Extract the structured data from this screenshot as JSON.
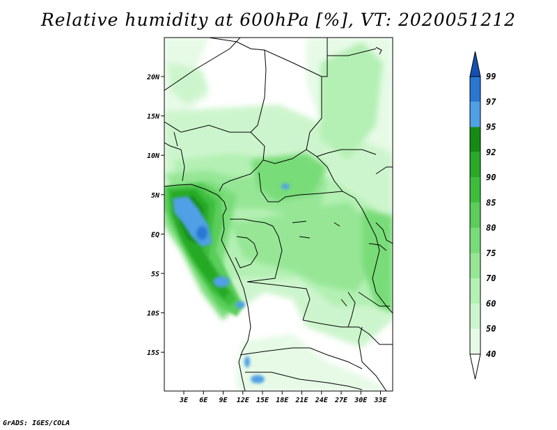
{
  "title": "Relative humidity at 600hPa [%], VT: 2020051212",
  "footer": "GrADS: IGES/COLA",
  "map": {
    "lon_range": [
      0,
      35
    ],
    "lat_range": [
      -20,
      25
    ],
    "lat_ticks": [
      "20N",
      "15N",
      "10N",
      "5N",
      "EQ",
      "5S",
      "10S",
      "15S"
    ],
    "lon_ticks": [
      "3E",
      "6E",
      "9E",
      "12E",
      "15E",
      "18E",
      "21E",
      "24E",
      "27E",
      "30E",
      "33E"
    ]
  },
  "colorbar": {
    "levels": [
      "40",
      "50",
      "60",
      "70",
      "75",
      "80",
      "85",
      "90",
      "92",
      "95",
      "97",
      "99"
    ],
    "colors": [
      "#ffffff",
      "#e6fae6",
      "#cdf5cd",
      "#b4f0b4",
      "#96e696",
      "#78dc78",
      "#5acd5a",
      "#3cbe3c",
      "#28aa28",
      "#148c14",
      "#50a0e6",
      "#2878d2",
      "#1450b4"
    ]
  }
}
